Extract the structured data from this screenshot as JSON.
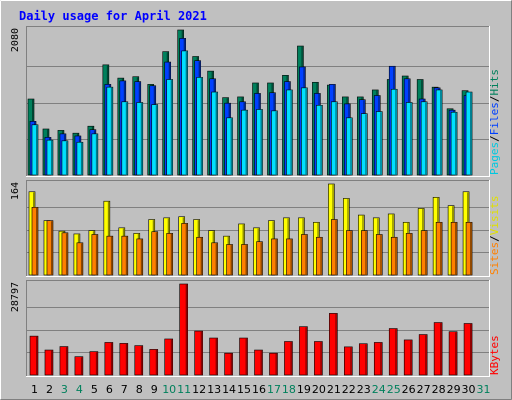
{
  "title": "Daily usage for April 2021",
  "colors": {
    "background": "#C0C0C0",
    "title": "#0000FF",
    "hits": "#00805C",
    "files": "#0040FF",
    "pages": "#00E0FF",
    "visits": "#FFFF00",
    "sites": "#FF8000",
    "kbytes": "#FF0000",
    "weekend": "#00805C",
    "weekday": "#000000",
    "separator": "#000000"
  },
  "chart_data": [
    {
      "type": "bar",
      "name": "hits-files-pages",
      "categories": [
        "1",
        "2",
        "3",
        "4",
        "5",
        "6",
        "7",
        "8",
        "9",
        "10",
        "11",
        "12",
        "13",
        "14",
        "15",
        "16",
        "17",
        "18",
        "19",
        "20",
        "21",
        "22",
        "23",
        "24",
        "25",
        "26",
        "27",
        "28",
        "29",
        "30",
        "31"
      ],
      "weekend_days": [
        "3",
        "4",
        "10",
        "11",
        "17",
        "18",
        "24",
        "25",
        "31"
      ],
      "scale_max": 2080,
      "scale_label": "2080",
      "series": [
        {
          "name": "Hits",
          "values": [
            1090,
            660,
            640,
            600,
            700,
            1580,
            1390,
            1410,
            1300,
            1770,
            2080,
            1700,
            1490,
            1110,
            1120,
            1320,
            1320,
            1430,
            1850,
            1330,
            1290,
            1120,
            1120,
            1220,
            1370,
            1420,
            1370,
            1260,
            950,
            1210,
            0
          ]
        },
        {
          "name": "Files",
          "values": [
            770,
            540,
            590,
            560,
            650,
            1300,
            1350,
            1340,
            1280,
            1620,
            1960,
            1640,
            1380,
            1030,
            1050,
            1170,
            1180,
            1340,
            1550,
            1170,
            1300,
            1020,
            1080,
            1140,
            1560,
            1380,
            1090,
            1250,
            930,
            1140,
            0
          ]
        },
        {
          "name": "Pages",
          "values": [
            720,
            500,
            490,
            470,
            590,
            1260,
            1050,
            1040,
            1010,
            1370,
            1780,
            1400,
            1190,
            820,
            930,
            940,
            920,
            1220,
            1250,
            1000,
            1050,
            820,
            880,
            910,
            1230,
            1040,
            1050,
            1220,
            900,
            1190,
            0
          ]
        }
      ]
    },
    {
      "type": "bar",
      "name": "visits-sites",
      "categories": [
        "1",
        "2",
        "3",
        "4",
        "5",
        "6",
        "7",
        "8",
        "9",
        "10",
        "11",
        "12",
        "13",
        "14",
        "15",
        "16",
        "17",
        "18",
        "19",
        "20",
        "21",
        "22",
        "23",
        "24",
        "25",
        "26",
        "27",
        "28",
        "29",
        "30",
        "31"
      ],
      "scale_max": 164,
      "scale_label": "164",
      "series": [
        {
          "name": "Visits",
          "values": [
            150,
            98,
            79,
            74,
            80,
            133,
            85,
            75,
            100,
            103,
            105,
            100,
            80,
            70,
            92,
            85,
            98,
            103,
            103,
            95,
            164,
            138,
            108,
            103,
            110,
            95,
            120,
            140,
            125,
            150,
            0
          ]
        },
        {
          "name": "Sites",
          "values": [
            122,
            98,
            76,
            58,
            73,
            70,
            70,
            65,
            78,
            75,
            93,
            68,
            58,
            55,
            55,
            60,
            65,
            65,
            73,
            68,
            100,
            80,
            80,
            73,
            68,
            75,
            80,
            95,
            95,
            95,
            0
          ]
        }
      ]
    },
    {
      "type": "bar",
      "name": "kbytes",
      "categories": [
        "1",
        "2",
        "3",
        "4",
        "5",
        "6",
        "7",
        "8",
        "9",
        "10",
        "11",
        "12",
        "13",
        "14",
        "15",
        "16",
        "17",
        "18",
        "19",
        "20",
        "21",
        "22",
        "23",
        "24",
        "25",
        "26",
        "27",
        "28",
        "29",
        "30",
        "31"
      ],
      "scale_max": 28797,
      "scale_label": "28797",
      "series": [
        {
          "name": "KBytes",
          "values": [
            12300,
            7900,
            9000,
            5800,
            7400,
            10300,
            10000,
            9300,
            8100,
            11400,
            28797,
            13900,
            11700,
            6900,
            11700,
            7900,
            6900,
            10600,
            15300,
            10600,
            19500,
            8900,
            9900,
            10300,
            14700,
            11100,
            12800,
            16600,
            13700,
            16300,
            0
          ]
        }
      ]
    }
  ],
  "panels": {
    "top": {
      "legend": [
        {
          "name": "Pages",
          "color": "#00C8E0"
        },
        {
          "sep": "/"
        },
        {
          "name": "Files",
          "color": "#0040FF"
        },
        {
          "sep": "/"
        },
        {
          "name": "Hits",
          "color": "#00805C"
        }
      ]
    },
    "middle": {
      "legend": [
        {
          "name": "Sites",
          "color": "#FF8000"
        },
        {
          "sep": "/"
        },
        {
          "name": "Visits",
          "color": "#E0E000"
        }
      ]
    },
    "bottom": {
      "legend": [
        {
          "name": "KBytes",
          "color": "#FF0000"
        }
      ]
    }
  }
}
